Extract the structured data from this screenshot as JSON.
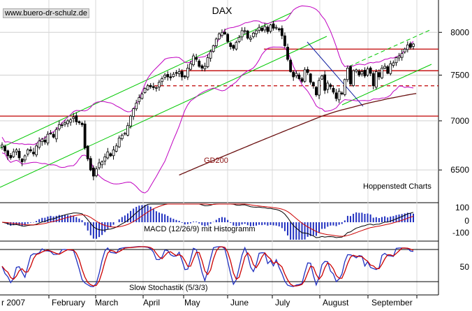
{
  "header": {
    "site": "www.buero-dr-schulz.de"
  },
  "chart_data": [
    {
      "type": "candlestick",
      "title": "DAX",
      "y_scale": "log",
      "ylim": [
        6200,
        8400
      ],
      "y_ticks": [
        8000,
        7500,
        7000,
        6500
      ],
      "grid": true,
      "price_levels": [
        7800,
        7550,
        7050
      ],
      "dashed_level": 7380,
      "moving_average_label": "GD200",
      "source_label": "Hoppenstedt Charts",
      "close": [
        6750,
        6690,
        6640,
        6620,
        6680,
        6700,
        6620,
        6580,
        6640,
        6700,
        6690,
        6660,
        6740,
        6790,
        6810,
        6780,
        6860,
        6870,
        6830,
        6910,
        6960,
        6950,
        6980,
        7000,
        7010,
        7040,
        6990,
        6980,
        6960,
        6720,
        6610,
        6500,
        6440,
        6510,
        6570,
        6580,
        6630,
        6680,
        6640,
        6700,
        6740,
        6820,
        6850,
        6870,
        6950,
        7050,
        7130,
        7190,
        7250,
        7290,
        7350,
        7380,
        7370,
        7360,
        7360,
        7420,
        7460,
        7500,
        7480,
        7470,
        7510,
        7520,
        7540,
        7480,
        7480,
        7580,
        7630,
        7720,
        7680,
        7600,
        7580,
        7600,
        7700,
        7770,
        7840,
        7920,
        7980,
        8000,
        7980,
        7890,
        7830,
        7810,
        7880,
        7940,
        8020,
        8020,
        7930,
        7930,
        7990,
        8020,
        8060,
        8020,
        8070,
        8010,
        8090,
        8050,
        8060,
        8030,
        7960,
        7840,
        7680,
        7540,
        7480,
        7520,
        7460,
        7430,
        7560,
        7530,
        7420,
        7380,
        7280,
        7440,
        7490,
        7330,
        7410,
        7370,
        7310,
        7240,
        7320,
        7290,
        7450,
        7580,
        7400,
        7550,
        7560,
        7500,
        7540,
        7490,
        7570,
        7520,
        7380,
        7540,
        7480,
        7580,
        7600,
        7520,
        7630,
        7640,
        7700,
        7720,
        7750,
        7800,
        7850,
        7820,
        7860
      ],
      "gd200": [
        6450,
        6462,
        6474,
        6486,
        6498,
        6510,
        6522,
        6534,
        6546,
        6558,
        6570,
        6582,
        6594,
        6606,
        6618,
        6630,
        6642,
        6654,
        6666,
        6678,
        6690,
        6702,
        6714,
        6726,
        6738,
        6750,
        6762,
        6774,
        6786,
        6798,
        6810,
        6822,
        6834,
        6846,
        6858,
        6870,
        6882,
        6894,
        6906,
        6918,
        6930,
        6942,
        6954,
        6966,
        6978,
        6990,
        7002,
        7014,
        7026,
        7038,
        7050,
        7060,
        7070,
        7080,
        7090,
        7100,
        7108,
        7116,
        7124,
        7132,
        7140,
        7148,
        7156,
        7164,
        7172,
        7180,
        7188,
        7195,
        7202,
        7209,
        7216,
        7223,
        7230,
        7237,
        7243,
        7249,
        7255,
        7261,
        7267,
        7273,
        7279,
        7285,
        7290,
        7295
      ],
      "gd200_start_index": 62,
      "macd_axis": {
        "ticks": [
          "100",
          "0",
          "-100"
        ]
      },
      "macd_label": "MACD (12/26/9) mit Histogramm",
      "stochastic_axis": {
        "ticks": [
          "50"
        ]
      },
      "stochastic_label": "Slow Stochastik (5/3/3)",
      "x_labels": [
        "r 2007",
        "February",
        "March",
        "April",
        "May",
        "June",
        "July",
        "August",
        "September"
      ]
    }
  ],
  "colors": {
    "candle": "#000000",
    "channel": "#00c800",
    "bollinger": "#c000c0",
    "level": "#c00000",
    "gd200": "#6a1010",
    "macd_line": "#000000",
    "signal_line": "#cc0000",
    "histogram": "#2030c0",
    "stoch_k": "#2030c0",
    "stoch_d": "#cc0000"
  }
}
